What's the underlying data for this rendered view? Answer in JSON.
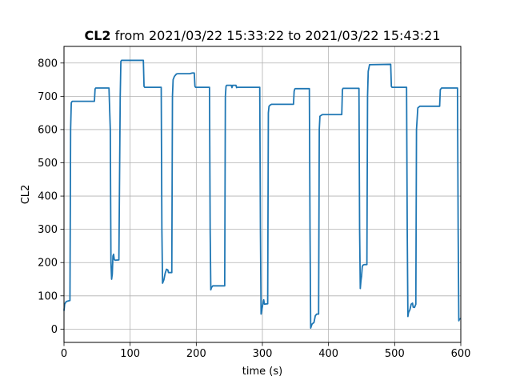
{
  "chart_data": {
    "type": "line",
    "title": {
      "bold": "CL2",
      "rest": " from 2021/03/22 15:33:22 to 2021/03/22 15:43:21"
    },
    "xlabel": "time (s)",
    "ylabel": "CL2",
    "xlim": [
      0,
      600
    ],
    "ylim": [
      -40,
      850
    ],
    "x_ticks": [
      0,
      100,
      200,
      300,
      400,
      500,
      600
    ],
    "y_ticks": [
      0,
      100,
      200,
      300,
      400,
      500,
      600,
      700,
      800
    ],
    "grid": true,
    "legend": "none",
    "line_color": "#1f77b4",
    "series": [
      {
        "points": [
          [
            0,
            55
          ],
          [
            1,
            75
          ],
          [
            3,
            82
          ],
          [
            5,
            84
          ],
          [
            9,
            86
          ],
          [
            10,
            600
          ],
          [
            11,
            680
          ],
          [
            12,
            684
          ],
          [
            13,
            685
          ],
          [
            46,
            685
          ],
          [
            47,
            722
          ],
          [
            48,
            725
          ],
          [
            68,
            725
          ],
          [
            70,
            600
          ],
          [
            71,
            200
          ],
          [
            72,
            150
          ],
          [
            73,
            165
          ],
          [
            74,
            220
          ],
          [
            75,
            225
          ],
          [
            76,
            210
          ],
          [
            77,
            207
          ],
          [
            83,
            208
          ],
          [
            85,
            700
          ],
          [
            86,
            805
          ],
          [
            87,
            808
          ],
          [
            120,
            808
          ],
          [
            121,
            730
          ],
          [
            122,
            727
          ],
          [
            147,
            727
          ],
          [
            148,
            300
          ],
          [
            149,
            138
          ],
          [
            151,
            148
          ],
          [
            153,
            168
          ],
          [
            155,
            180
          ],
          [
            157,
            178
          ],
          [
            158,
            170
          ],
          [
            163,
            170
          ],
          [
            164,
            700
          ],
          [
            165,
            750
          ],
          [
            167,
            760
          ],
          [
            170,
            767
          ],
          [
            172,
            768
          ],
          [
            190,
            768
          ],
          [
            194,
            770
          ],
          [
            197,
            770
          ],
          [
            198,
            730
          ],
          [
            199,
            727
          ],
          [
            220,
            727
          ],
          [
            221,
            300
          ],
          [
            222,
            118
          ],
          [
            223,
            125
          ],
          [
            225,
            130
          ],
          [
            243,
            130
          ],
          [
            244,
            700
          ],
          [
            245,
            730
          ],
          [
            246,
            733
          ],
          [
            253,
            733
          ],
          [
            254,
            726
          ],
          [
            255,
            733
          ],
          [
            260,
            733
          ],
          [
            261,
            726
          ],
          [
            262,
            727
          ],
          [
            296,
            727
          ],
          [
            297,
            300
          ],
          [
            298,
            45
          ],
          [
            299,
            55
          ],
          [
            301,
            80
          ],
          [
            302,
            88
          ],
          [
            303,
            75
          ],
          [
            308,
            76
          ],
          [
            309,
            650
          ],
          [
            310,
            670
          ],
          [
            312,
            674
          ],
          [
            314,
            676
          ],
          [
            347,
            676
          ],
          [
            348,
            715
          ],
          [
            349,
            722
          ],
          [
            350,
            723
          ],
          [
            371,
            723
          ],
          [
            372,
            300
          ],
          [
            373,
            3
          ],
          [
            375,
            15
          ],
          [
            378,
            20
          ],
          [
            380,
            40
          ],
          [
            382,
            45
          ],
          [
            385,
            45
          ],
          [
            386,
            600
          ],
          [
            387,
            640
          ],
          [
            389,
            643
          ],
          [
            391,
            645
          ],
          [
            420,
            645
          ],
          [
            421,
            720
          ],
          [
            422,
            724
          ],
          [
            446,
            724
          ],
          [
            447,
            300
          ],
          [
            448,
            122
          ],
          [
            449,
            145
          ],
          [
            450,
            160
          ],
          [
            451,
            188
          ],
          [
            452,
            192
          ],
          [
            454,
            194
          ],
          [
            458,
            194
          ],
          [
            459,
            700
          ],
          [
            460,
            775
          ],
          [
            461,
            785
          ],
          [
            462,
            795
          ],
          [
            494,
            796
          ],
          [
            495,
            730
          ],
          [
            496,
            727
          ],
          [
            518,
            727
          ],
          [
            519,
            300
          ],
          [
            520,
            38
          ],
          [
            521,
            50
          ],
          [
            523,
            58
          ],
          [
            525,
            75
          ],
          [
            527,
            78
          ],
          [
            528,
            66
          ],
          [
            530,
            65
          ],
          [
            532,
            75
          ],
          [
            533,
            600
          ],
          [
            535,
            665
          ],
          [
            538,
            670
          ],
          [
            568,
            670
          ],
          [
            569,
            720
          ],
          [
            571,
            725
          ],
          [
            595,
            725
          ],
          [
            596,
            300
          ],
          [
            597,
            25
          ],
          [
            598,
            30
          ],
          [
            600,
            32
          ]
        ]
      }
    ]
  }
}
